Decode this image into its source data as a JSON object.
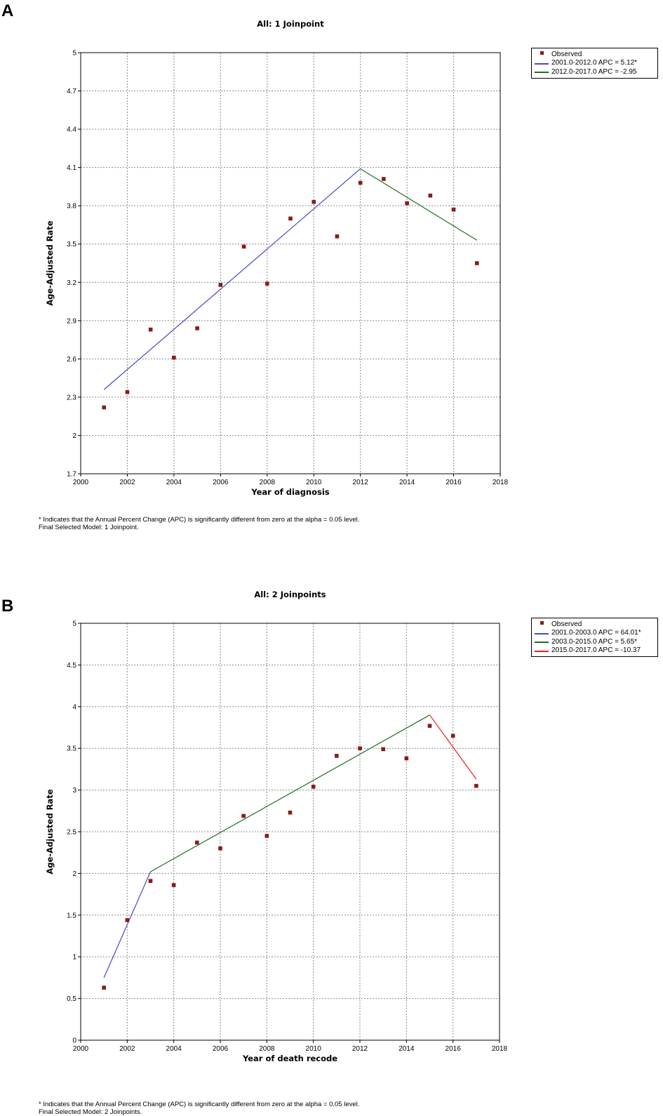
{
  "chart_data": [
    {
      "panel_label": "A",
      "type": "line",
      "title": "All: 1 Joinpoint",
      "xlabel": "Year of diagnosis",
      "ylabel": "Age-Adjusted Rate",
      "xlim": [
        2000,
        2018
      ],
      "ylim": [
        1.7,
        5
      ],
      "xticks": [
        2000,
        2002,
        2004,
        2006,
        2008,
        2010,
        2012,
        2014,
        2016,
        2018
      ],
      "yticks": [
        1.7,
        2,
        2.3,
        2.6,
        2.9,
        3.2,
        3.5,
        3.8,
        4.1,
        4.4,
        4.7,
        5
      ],
      "ytick_labels": [
        "1.7",
        "2",
        "2.3",
        "2.6",
        "2.9",
        "3.2",
        "3.5",
        "3.8",
        "4.1",
        "4.4",
        "4.7",
        "5"
      ],
      "grid": true,
      "legend_position": "top-right, outside plot",
      "observed": {
        "name": "Observed",
        "color": "#8b1a1a",
        "x": [
          2001,
          2002,
          2003,
          2004,
          2005,
          2006,
          2007,
          2008,
          2009,
          2010,
          2011,
          2012,
          2013,
          2014,
          2015,
          2016,
          2017
        ],
        "y": [
          2.22,
          2.34,
          2.83,
          2.61,
          2.84,
          3.18,
          3.48,
          3.19,
          3.7,
          3.83,
          3.56,
          3.98,
          4.01,
          3.82,
          3.88,
          3.77,
          3.35
        ]
      },
      "series": [
        {
          "name": "2001.0-2012.0 APC = 5.12*",
          "color": "#4848c8",
          "x_start": 2001,
          "x_end": 2012,
          "y_start": 2.36,
          "y_end": 4.09,
          "apc": 5.12
        },
        {
          "name": "2012.0-2017.0 APC = -2.95",
          "color": "#1f6f1f",
          "x_start": 2012,
          "x_end": 2017,
          "y_start": 4.09,
          "y_end": 3.53,
          "apc": -2.95
        }
      ],
      "footnote_1": "* Indicates that the Annual Percent Change (APC) is significantly different from zero at the alpha = 0.05 level.",
      "footnote_2": "Final Selected Model: 1 Joinpoint."
    },
    {
      "panel_label": "B",
      "type": "line",
      "title": "All: 2 Joinpoints",
      "xlabel": "Year of death recode",
      "ylabel": "Age-Adjusted Rate",
      "xlim": [
        2000,
        2018
      ],
      "ylim": [
        0,
        5
      ],
      "xticks": [
        2000,
        2002,
        2004,
        2006,
        2008,
        2010,
        2012,
        2014,
        2016,
        2018
      ],
      "yticks": [
        0,
        0.5,
        1,
        1.5,
        2,
        2.5,
        3,
        3.5,
        4,
        4.5,
        5
      ],
      "ytick_labels": [
        "0",
        "0.5",
        "1",
        "1.5",
        "2",
        "2.5",
        "3",
        "3.5",
        "4",
        "4.5",
        "5"
      ],
      "grid": true,
      "legend_position": "top-right, outside plot",
      "observed": {
        "name": "Observed",
        "color": "#8b1a1a",
        "x": [
          2001,
          2002,
          2003,
          2004,
          2005,
          2006,
          2007,
          2008,
          2009,
          2010,
          2011,
          2012,
          2013,
          2014,
          2015,
          2016,
          2017
        ],
        "y": [
          0.63,
          1.44,
          1.91,
          1.86,
          2.37,
          2.3,
          2.69,
          2.45,
          2.73,
          3.04,
          3.41,
          3.5,
          3.49,
          3.38,
          3.77,
          3.65,
          3.05
        ]
      },
      "series": [
        {
          "name": "2001.0-2003.0 APC = 64.01*",
          "color": "#4848c8",
          "x_start": 2001,
          "x_end": 2003,
          "y_start": 0.75,
          "y_end": 2.02,
          "apc": 64.01
        },
        {
          "name": "2003.0-2015.0 APC = 5.65*",
          "color": "#1f6f1f",
          "x_start": 2003,
          "x_end": 2015,
          "y_start": 2.02,
          "y_end": 3.9,
          "apc": 5.65
        },
        {
          "name": "2015.0-2017.0 APC = -10.37",
          "color": "#e82020",
          "x_start": 2015,
          "x_end": 2017,
          "y_start": 3.9,
          "y_end": 3.13,
          "apc": -10.37
        }
      ],
      "footnote_1": "* Indicates that the Annual Percent Change (APC) is significantly different from zero at the alpha = 0.05 level.",
      "footnote_2": "Final Selected Model: 2 Joinpoints."
    }
  ]
}
